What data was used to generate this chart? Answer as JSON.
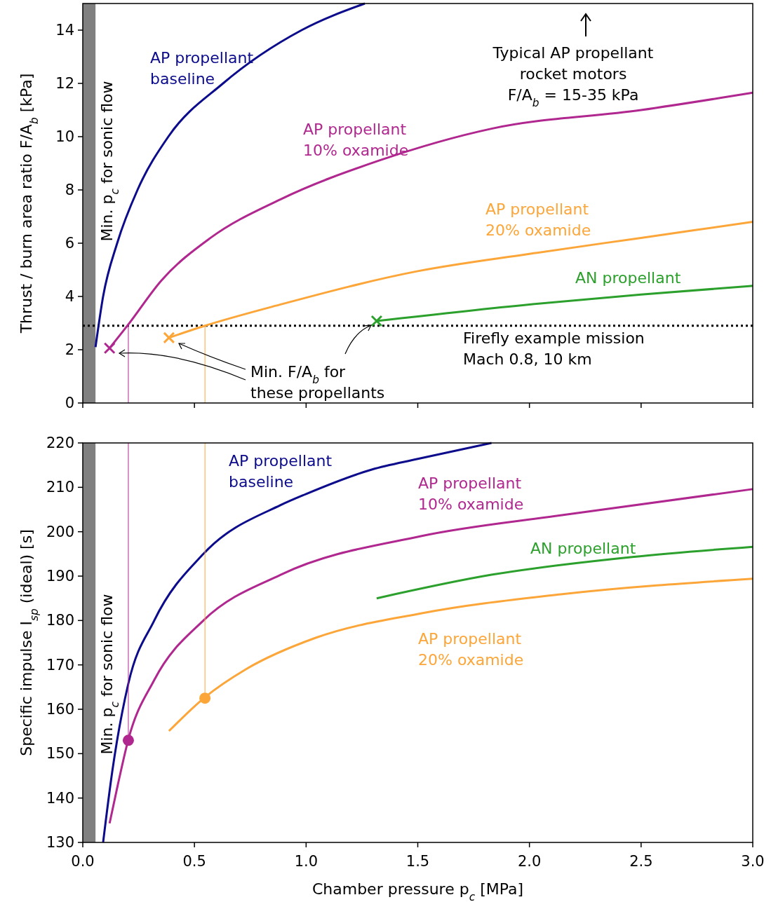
{
  "chart_data": [
    {
      "type": "line",
      "ylabel": "Thrust / burn area ratio F/A$_{b}$ [kPa]",
      "xlim": [
        0,
        3
      ],
      "xticks": [
        {
          "value": 0,
          "label": null
        },
        {
          "value": 0.5,
          "label": null
        },
        {
          "value": 1,
          "label": null
        },
        {
          "value": 1.5,
          "label": null
        },
        {
          "value": 2,
          "label": null
        },
        {
          "value": 2.5,
          "label": null
        },
        {
          "value": 3,
          "label": null
        }
      ],
      "ylim": [
        0,
        15
      ],
      "yticks": [
        0,
        2,
        4,
        6,
        8,
        10,
        12,
        14
      ],
      "tick_labels": "y",
      "grid": false,
      "bands": [
        {
          "axis": "x",
          "from": 0,
          "to": 0.057,
          "label": "Min. p$_{c}$ for sonic flow",
          "color": "#808080"
        }
      ],
      "ref_lines": [
        {
          "axis": "y",
          "value": 2.9,
          "label": "Firefly example mission\nMach 0.8, 10 km",
          "color": "#000000",
          "line_style": "dotted"
        }
      ],
      "annotations": [
        "Typical AP propellant\nrocket motors\nF/A$_{b}$ = 15-35 kPa",
        {
          "text": "Min. F/A$_{b}$ for\nthese propellants",
          "x": 1.316,
          "y": 3.08
        }
      ],
      "series": [
        {
          "name": "AP propellant\nbaseline",
          "color": "#0b0b8c",
          "x": [
            0.057,
            0.091,
            0.154,
            0.245,
            0.383,
            0.628,
            0.98,
            1.263
          ],
          "values": [
            2.1,
            4,
            6,
            8,
            10,
            12,
            14,
            15
          ]
        },
        {
          "name": "AP propellant\n10% oxamide",
          "color": "#b0288f",
          "x": [
            0.12,
            0.204,
            0.352,
            0.572,
            0.886,
            1.326,
            1.83,
            2.5,
            3.0
          ],
          "values": [
            2.06,
            2.95,
            4.6,
            6.2,
            7.65,
            9.1,
            10.3,
            11.0,
            11.65
          ]
        },
        {
          "name": "AP propellant\n20% oxamide",
          "color": "#fca63a",
          "x": [
            0.386,
            0.547,
            0.886,
            1.5,
            2.0,
            2.5,
            3.0
          ],
          "values": [
            2.45,
            2.9,
            3.7,
            4.95,
            5.6,
            6.2,
            6.8
          ]
        },
        {
          "name": "AN propellant",
          "color": "#2ca02c",
          "x": [
            1.316,
            2.0,
            2.5,
            3.0
          ],
          "values": [
            3.08,
            3.7,
            4.07,
            4.4
          ]
        },
        {
          "type": "scatter",
          "marker": "cross",
          "color": "#b0288f",
          "x": [
            0.12
          ],
          "values": [
            2.06
          ]
        },
        {
          "type": "scatter",
          "marker": "cross",
          "color": "#fca63a",
          "x": [
            0.386
          ],
          "values": [
            2.45
          ]
        },
        {
          "type": "scatter",
          "marker": "cross",
          "color": "#2ca02c",
          "x": [
            1.316
          ],
          "values": [
            3.08
          ]
        },
        {
          "color": "#b0288f",
          "x": [
            0.204,
            0.204
          ],
          "values": [
            0,
            2.95
          ]
        },
        {
          "color": "#fca63a",
          "x": [
            0.547,
            0.547
          ],
          "values": [
            0,
            2.9
          ]
        }
      ]
    },
    {
      "type": "line",
      "xlabel": "Chamber pressure p$_{c}$ [MPa]",
      "ylabel": "Specific impulse I$_{sp}$ (ideal) [s]",
      "xlim": [
        0,
        3
      ],
      "xticks": [
        {
          "value": 0,
          "label": "0.0"
        },
        {
          "value": 0.5,
          "label": "0.5"
        },
        {
          "value": 1,
          "label": "1.0"
        },
        {
          "value": 1.5,
          "label": "1.5"
        },
        {
          "value": 2,
          "label": "2.0"
        },
        {
          "value": 2.5,
          "label": "2.5"
        },
        {
          "value": 3,
          "label": "3.0"
        }
      ],
      "ylim": [
        130,
        220
      ],
      "yticks": [
        130,
        140,
        150,
        160,
        170,
        180,
        190,
        200,
        210,
        220
      ],
      "grid": false,
      "bands": [
        {
          "axis": "x",
          "from": 0,
          "to": 0.057,
          "label": "Min. p$_{c}$ for sonic flow",
          "color": "#808080"
        }
      ],
      "series": [
        {
          "name": "AP propellant\nbaseline",
          "color": "#0b0b8c",
          "x": [
            0.091,
            0.132,
            0.204,
            0.32,
            0.54,
            0.886,
            1.0,
            1.294,
            1.5,
            1.83
          ],
          "values": [
            130,
            146,
            165.8,
            180,
            195,
            206,
            208.5,
            214,
            216.4,
            220
          ]
        },
        {
          "name": "AP propellant\n10% oxamide",
          "color": "#b0288f",
          "x": [
            0.12,
            0.157,
            0.204,
            0.32,
            0.54,
            0.886,
            1.514,
            2.14,
            3.0
          ],
          "values": [
            134.3,
            143,
            153.2,
            166.6,
            180,
            190.3,
            199,
            203.7,
            209.6
          ]
        },
        {
          "name": "AN propellant",
          "color": "#2ca02c",
          "x": [
            1.316,
            1.83,
            2.46,
            3.0
          ],
          "values": [
            185,
            190.3,
            194.3,
            196.6
          ]
        },
        {
          "name": "AP propellant\n20% oxamide",
          "color": "#fca63a",
          "x": [
            0.386,
            0.547,
            0.73,
            1.043,
            1.514,
            2.14,
            3.0
          ],
          "values": [
            155.1,
            162.7,
            169,
            176.1,
            181.6,
            185.9,
            189.4
          ]
        },
        {
          "color": "#b0288f",
          "x": [
            0.204,
            0.204
          ],
          "values": [
            153,
            220
          ]
        },
        {
          "color": "#fca63a",
          "x": [
            0.547,
            0.547
          ],
          "values": [
            162.5,
            220
          ]
        },
        {
          "type": "scatter",
          "marker": "circle",
          "color": "#b0288f",
          "x": [
            0.204
          ],
          "values": [
            153
          ]
        },
        {
          "type": "scatter",
          "marker": "circle",
          "color": "#fca63a",
          "x": [
            0.547
          ],
          "values": [
            162.5
          ]
        }
      ]
    }
  ]
}
